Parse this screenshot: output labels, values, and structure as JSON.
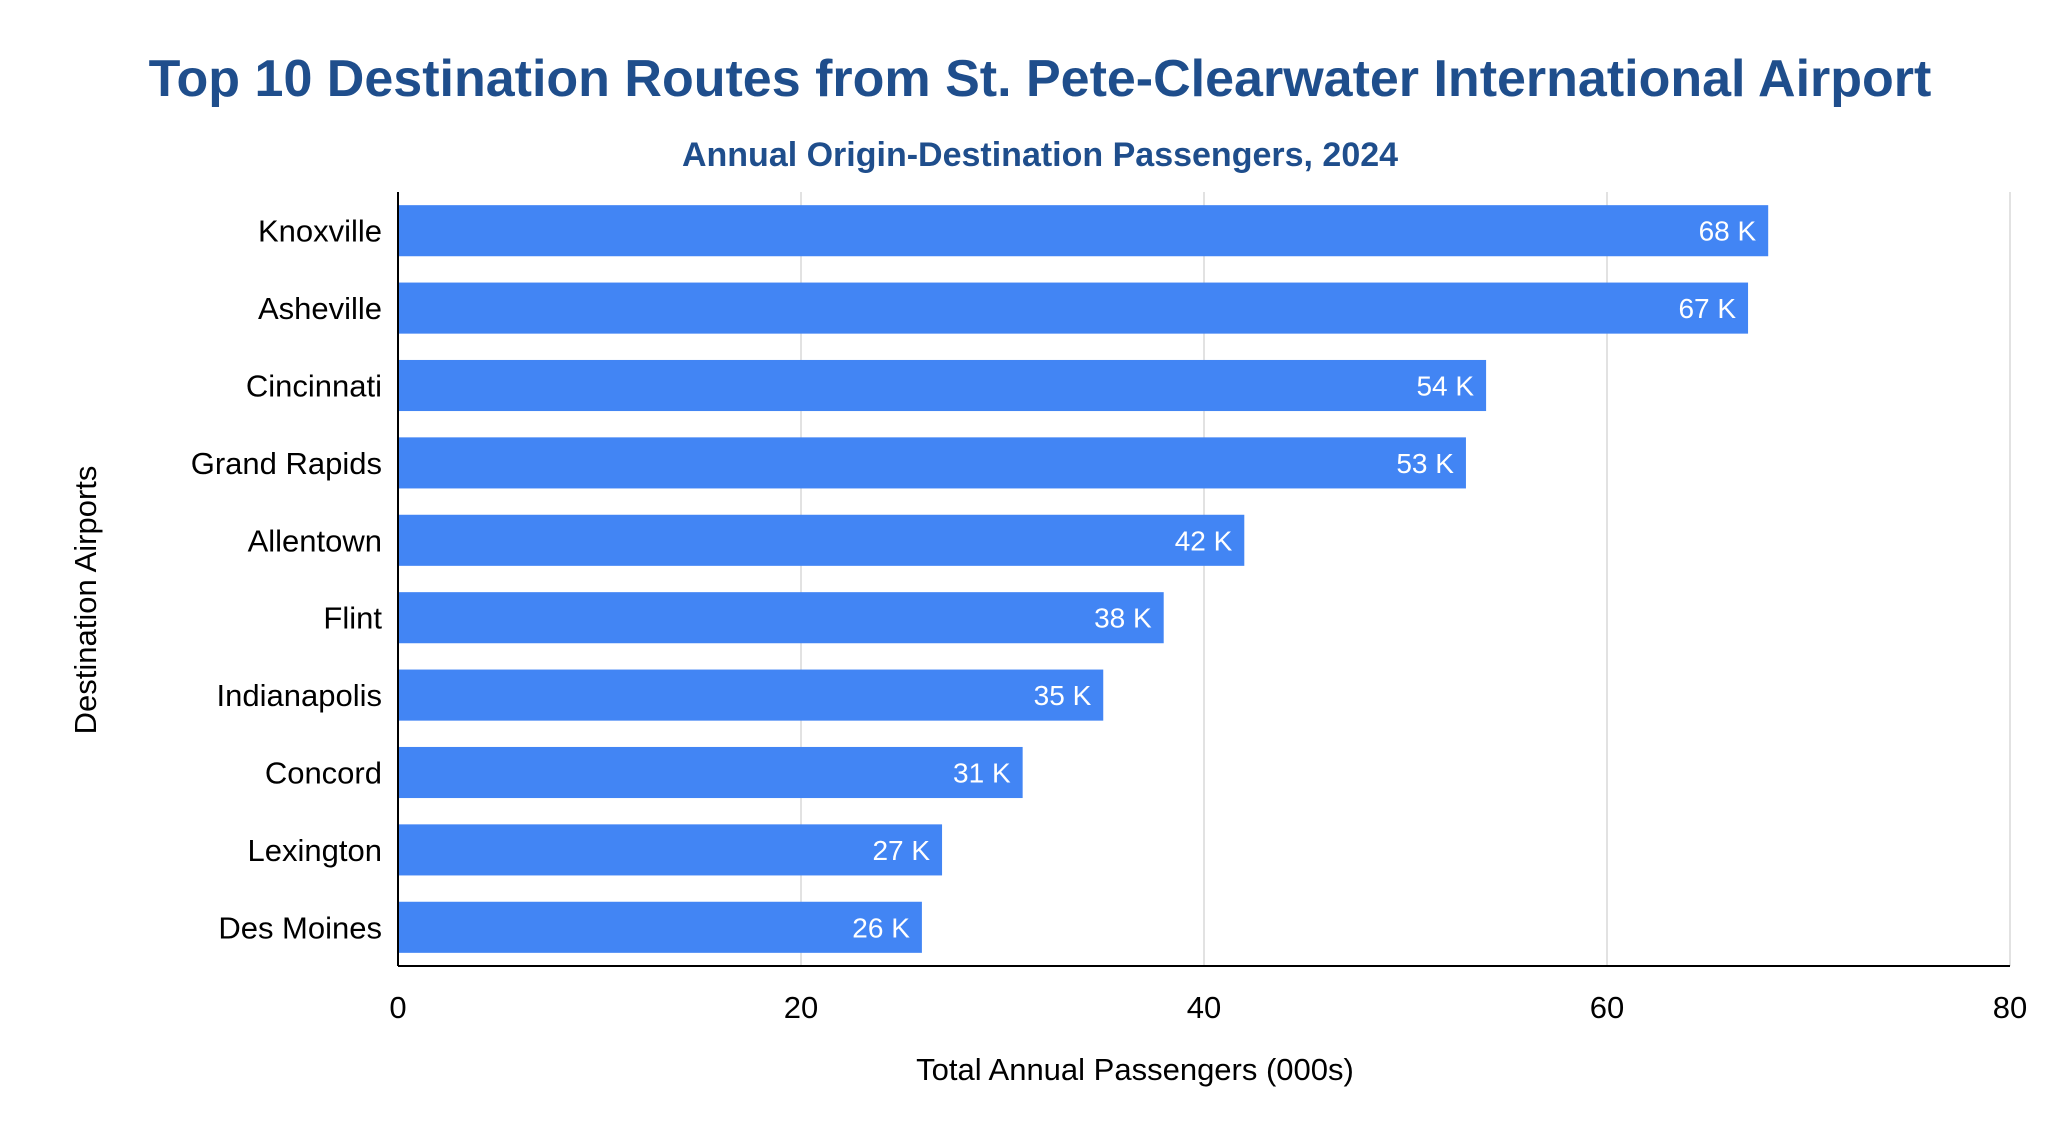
{
  "chart_data": {
    "type": "bar",
    "orientation": "horizontal",
    "title": "Top 10 Destination Routes from St. Pete-Clearwater International Airport",
    "subtitle": "Annual Origin-Destination Passengers, 2024",
    "xlabel": "Total Annual Passengers (000s)",
    "ylabel": "Destination Airports",
    "categories": [
      "Knoxville",
      "Asheville",
      "Cincinnati",
      "Grand Rapids",
      "Allentown",
      "Flint",
      "Indianapolis",
      "Concord",
      "Lexington",
      "Des Moines"
    ],
    "values": [
      68,
      67,
      54,
      53,
      42,
      38,
      35,
      31,
      27,
      26
    ],
    "data_labels": [
      "68 K",
      "67 K",
      "54 K",
      "53 K",
      "42 K",
      "38 K",
      "35 K",
      "31 K",
      "27 K",
      "26 K"
    ],
    "xlim": [
      0,
      80
    ],
    "xticks": [
      0,
      20,
      40,
      60,
      80
    ],
    "xtick_labels": [
      "0",
      "20",
      "40",
      "60",
      "80"
    ],
    "grid": "vertical",
    "legend": "none"
  },
  "colors": {
    "bar": "#4285f4",
    "title": "#1f4e8c",
    "grid": "#d9d9d9",
    "axis": "#000000",
    "data_label": "#ffffff"
  }
}
